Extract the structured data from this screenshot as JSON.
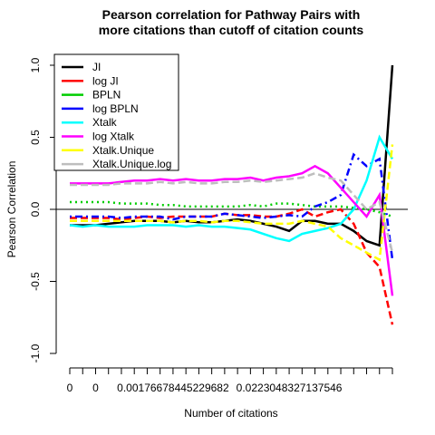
{
  "chart_data": {
    "type": "line",
    "title": "Pearson correlation for Pathway Pairs with\nmore citations than cutoff of citation counts",
    "x_label": "Number of citations",
    "y_label": "Pearson Correlation",
    "categories": [
      "0",
      null,
      "0",
      null,
      null,
      null,
      null,
      null,
      "0.00176678445229682",
      null,
      null,
      null,
      null,
      null,
      null,
      null,
      null,
      "0.0223048327137546",
      null,
      null,
      null,
      null,
      null,
      null,
      null,
      null
    ],
    "ylim": [
      -1,
      1
    ],
    "yticks": [
      {
        "value": -1,
        "label": "-1.0"
      },
      -0.5,
      {
        "value": 0,
        "label": "0.0"
      },
      0.5,
      {
        "value": 1,
        "label": "1.0"
      }
    ],
    "legend": "top-left",
    "series": [
      {
        "name": "JI",
        "color": "#000000",
        "line_style": "solid",
        "values": [
          -0.11,
          -0.11,
          -0.11,
          -0.1,
          -0.09,
          -0.08,
          -0.08,
          -0.08,
          -0.09,
          -0.08,
          -0.09,
          -0.09,
          -0.08,
          -0.07,
          -0.08,
          -0.1,
          -0.12,
          -0.15,
          -0.08,
          -0.08,
          -0.1,
          -0.1,
          -0.15,
          -0.22,
          -0.25,
          1.0
        ]
      },
      {
        "name": "log JI",
        "color": "#ff0000",
        "line_style": "dashed",
        "values": [
          -0.06,
          -0.06,
          -0.06,
          -0.06,
          -0.07,
          -0.06,
          -0.05,
          -0.06,
          -0.05,
          -0.05,
          -0.05,
          -0.05,
          -0.03,
          -0.04,
          -0.04,
          -0.05,
          -0.05,
          -0.03,
          0.0,
          -0.05,
          -0.02,
          0.0,
          -0.1,
          -0.3,
          -0.4,
          -0.8
        ]
      },
      {
        "name": "BPLN",
        "color": "#00cd00",
        "line_style": "dotted",
        "values": [
          0.05,
          0.05,
          0.05,
          0.05,
          0.04,
          0.04,
          0.04,
          0.03,
          0.03,
          0.02,
          0.02,
          0.02,
          0.02,
          0.02,
          0.03,
          0.02,
          0.04,
          0.04,
          0.03,
          0.02,
          0.02,
          0.02,
          0.01,
          0.0,
          -0.02,
          -0.05
        ]
      },
      {
        "name": "log BPLN",
        "color": "#0000ff",
        "line_style": "dashdot",
        "values": [
          -0.05,
          -0.05,
          -0.05,
          -0.05,
          -0.06,
          -0.05,
          -0.05,
          -0.05,
          -0.07,
          -0.05,
          -0.05,
          -0.05,
          -0.03,
          -0.04,
          -0.05,
          -0.06,
          -0.05,
          -0.04,
          -0.05,
          0.02,
          0.05,
          0.1,
          0.38,
          0.3,
          0.35,
          -0.35
        ]
      },
      {
        "name": "Xtalk",
        "color": "#00ffff",
        "line_style": "solid",
        "values": [
          -0.11,
          -0.12,
          -0.11,
          -0.12,
          -0.12,
          -0.12,
          -0.11,
          -0.11,
          -0.11,
          -0.12,
          -0.11,
          -0.12,
          -0.12,
          -0.13,
          -0.14,
          -0.17,
          -0.2,
          -0.22,
          -0.17,
          -0.15,
          -0.13,
          -0.1,
          0.0,
          0.2,
          0.5,
          0.35
        ]
      },
      {
        "name": "log Xtalk",
        "color": "#ff00ff",
        "line_style": "solid",
        "values": [
          0.18,
          0.18,
          0.18,
          0.18,
          0.19,
          0.2,
          0.2,
          0.21,
          0.2,
          0.21,
          0.2,
          0.2,
          0.21,
          0.21,
          0.22,
          0.2,
          0.22,
          0.23,
          0.25,
          0.3,
          0.25,
          0.15,
          0.05,
          -0.05,
          0.1,
          -0.6
        ]
      },
      {
        "name": "Xtalk.Unique",
        "color": "#ffff00",
        "line_style": "dashed",
        "values": [
          -0.08,
          -0.08,
          -0.08,
          -0.08,
          -0.08,
          -0.08,
          -0.08,
          -0.08,
          -0.09,
          -0.08,
          -0.08,
          -0.09,
          -0.08,
          -0.08,
          -0.09,
          -0.1,
          -0.1,
          -0.1,
          -0.08,
          -0.1,
          -0.12,
          -0.2,
          -0.25,
          -0.3,
          -0.35,
          0.45
        ]
      },
      {
        "name": "Xtalk.Unique.log",
        "color": "#bebebe",
        "line_style": "dashed",
        "values": [
          0.17,
          0.17,
          0.17,
          0.17,
          0.18,
          0.18,
          0.18,
          0.19,
          0.18,
          0.19,
          0.18,
          0.18,
          0.19,
          0.19,
          0.2,
          0.19,
          0.2,
          0.21,
          0.22,
          0.25,
          0.22,
          0.2,
          0.1,
          0.0,
          0.05,
          -0.3
        ]
      }
    ]
  }
}
